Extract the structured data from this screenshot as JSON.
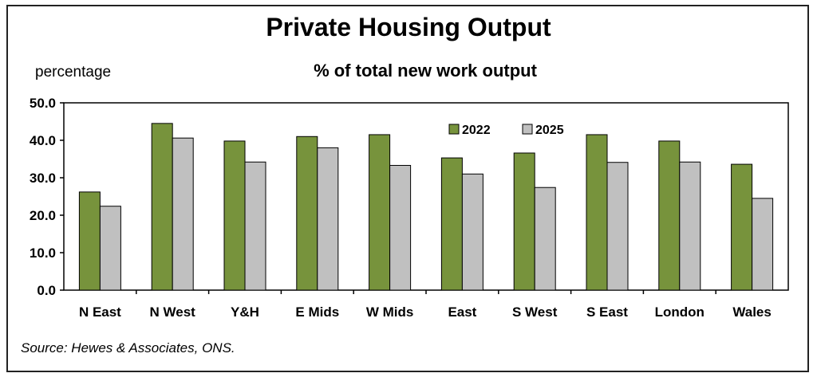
{
  "chart_data": {
    "type": "bar",
    "title": "Private Housing Output",
    "subtitle": "% of total new work output",
    "ylabel": "percentage",
    "xlabel": "",
    "ylim": [
      0,
      50
    ],
    "yticks": [
      "0.0",
      "10.0",
      "20.0",
      "30.0",
      "40.0",
      "50.0"
    ],
    "categories": [
      "N East",
      "N West",
      "Y&H",
      "E Mids",
      "W Mids",
      "East",
      "S West",
      "S East",
      "London",
      "Wales"
    ],
    "series": [
      {
        "name": "2022",
        "color": "#77933c",
        "values": [
          26.2,
          44.5,
          39.8,
          41.0,
          41.5,
          35.3,
          36.6,
          41.5,
          39.8,
          33.6
        ]
      },
      {
        "name": "2025",
        "color": "#c0c0c0",
        "values": [
          22.4,
          40.6,
          34.2,
          38.0,
          33.3,
          31.0,
          27.4,
          34.1,
          34.2,
          24.5
        ]
      }
    ],
    "legend_position": "top-center",
    "grid": false
  },
  "source": "Source: Hewes & Associates, ONS."
}
